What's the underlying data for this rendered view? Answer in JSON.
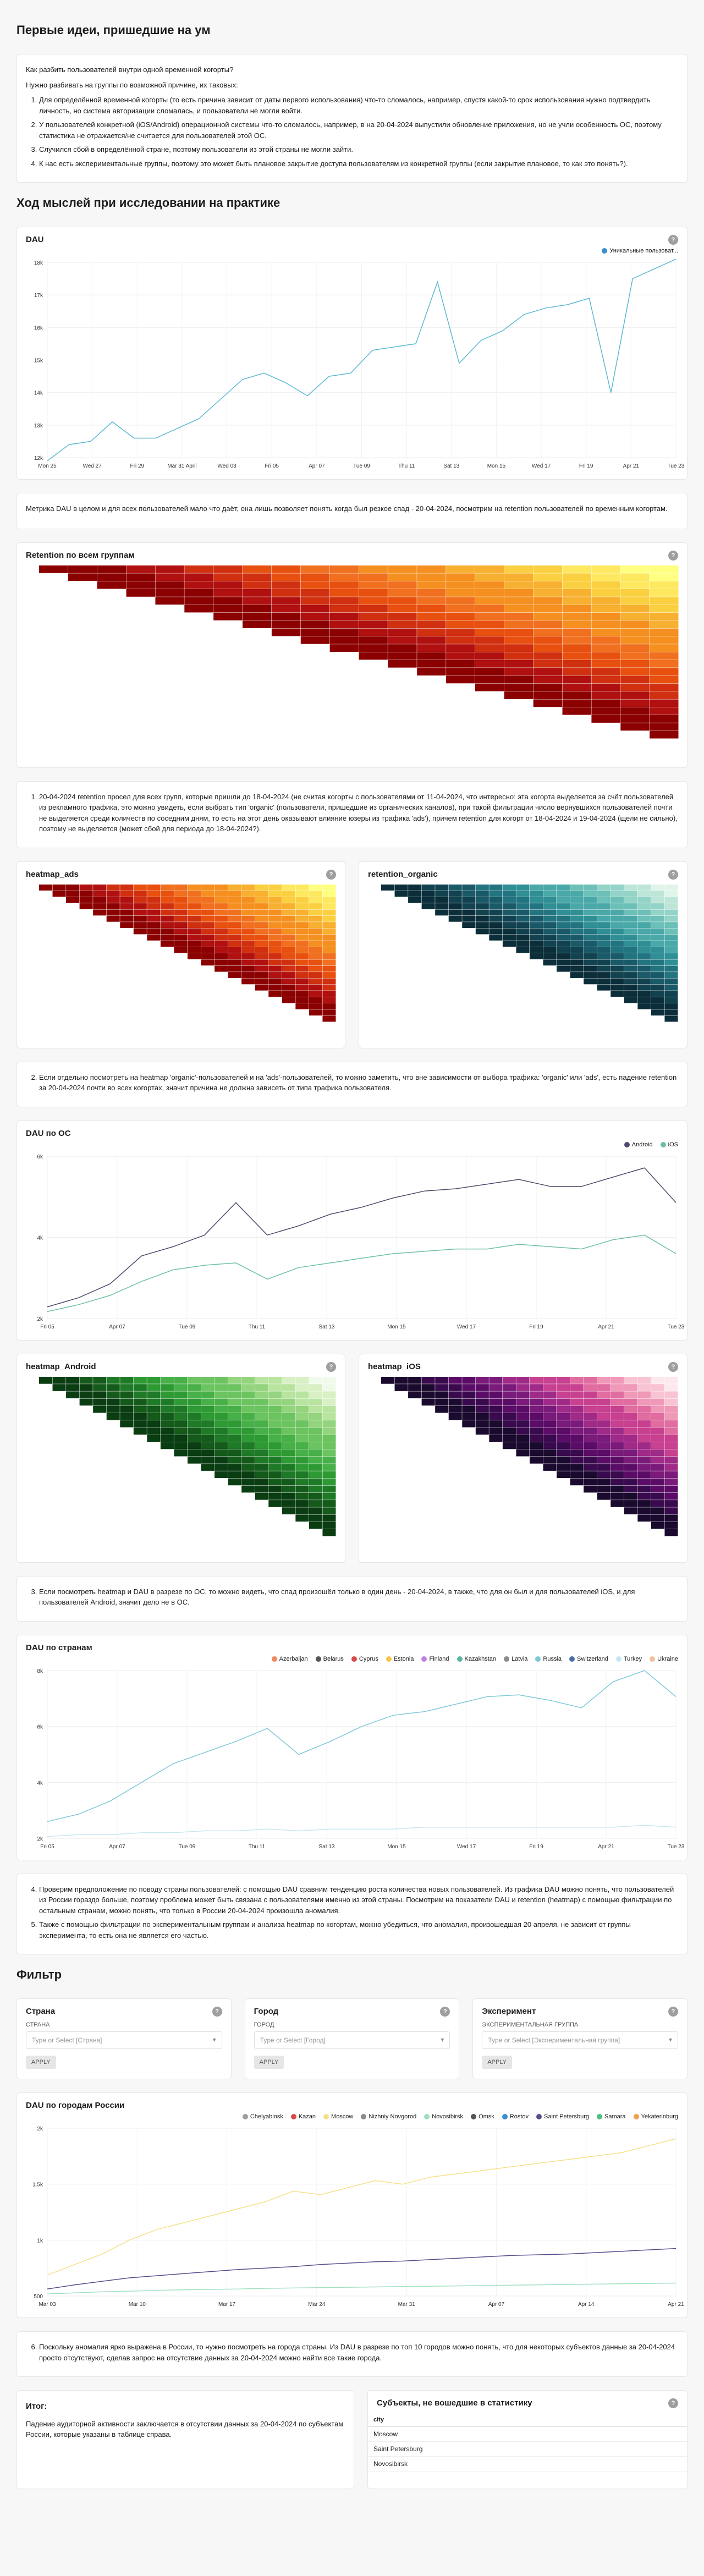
{
  "sections": {
    "first_ideas": "Первые идеи, пришедшие на ум",
    "practice": "Ход мыслей при исследовании на практике",
    "filter": "Фильтр"
  },
  "intro": {
    "q1": "Как разбить пользователей внутри одной временной когорты?",
    "q2": "Нужно разбивать на группы по возможной причине, их таковых:",
    "items": [
      "Для определённой временной когорты (то есть причина зависит от даты первого использования) что-то сломалось, например, спустя какой-то срок использования нужно подтвердить личность, но система авторизации сломалась, и пользователи не могли войти.",
      "У пользователей конкретной (iOS/Android) операционной системы что-то сломалось, например, в на 20-04-2024 выпустили обновление приложения, но не учли особенность ОС, поэтому статистика не отражается/не считается для пользователей этой ОС.",
      "Случился сбой в определённой стране, поэтому пользователи из этой страны не могли зайти.",
      "К нас есть экспериментальные группы, поэтому это может быть плановое закрытие доступа пользователям из конкретной группы (если закрытие плановое, то как это понять?)."
    ]
  },
  "dau": {
    "title": "DAU",
    "legend": "Уникальные пользоват...",
    "color": "#5bb8d4"
  },
  "note1": "Метрика DAU в целом и для всех пользователей мало что даёт, она лишь позволяет понять когда был резкое спад - 20-04-2024, посмотрим на retention пользователей по временным когортам.",
  "retention_all": {
    "title": "Retention по всем группам"
  },
  "note2": "20-04-2024 retention просел для всех групп, которые пришли до 18-04-2024 (не считая когорты с пользователями от 11-04-2024, что интересно: эта когорта выделяется за счёт пользователей из рекламного трафика, это можно увидеть, если выбрать тип 'organic' (пользователи, пришедшие из органических каналов), при такой фильтрации число вернувшихся пользователей почти не выделяется среди количеств по соседним дням, то есть на этот день оказывают влияние юзеры из трафика 'ads'), причем retention для когорт от 18-04-2024 и 19-04-2024 (щели не сильно), поэтому не выделяется (может сбой для периода до 18-04-2024?).",
  "heatmap_ads": {
    "title": "heatmap_ads"
  },
  "retention_organic": {
    "title": "retention_organic"
  },
  "note3": "Если отдельно посмотреть на heatmap 'organic'-пользователей и на 'ads'-пользователей, то можно заметить, что вне зависимости от выбора трафика: 'organic' или 'ads', есть падение retention за 20-04-2024 почти во всех когортах, значит причина не должна зависеть от типа трафика пользователя.",
  "dau_os": {
    "title": "DAU по ОС",
    "android": "Android",
    "ios": "iOS"
  },
  "heatmap_android": {
    "title": "heatmap_Android"
  },
  "heatmap_ios": {
    "title": "heatmap_iOS"
  },
  "note4": "Если посмотреть heatmap и DAU в разрезе по ОС, то можно видеть, что спад произошёл только в один день - 20-04-2024, в также, что для он был и для пользователей iOS, и для пользователей Android, значит дело не в ОС.",
  "dau_countries": {
    "title": "DAU по странам",
    "legend": [
      "Azerbaijan",
      "Belarus",
      "Cyprus",
      "Estonia",
      "Finland",
      "Kazakhstan",
      "Latvia",
      "Russia",
      "Switzerland",
      "Turkey",
      "Ukraine"
    ],
    "colors": [
      "#f08a5d",
      "#555555",
      "#d94a4a",
      "#f5c542",
      "#c080e0",
      "#5bb8a0",
      "#8c8c8c",
      "#7ec8d8",
      "#4b6ea8",
      "#c8e6f0",
      "#f0c0a0"
    ]
  },
  "note5": [
    "Проверим предположение по поводу страны пользователей: с помощью DAU сравним тенденцию роста количества новых пользователей. Из графика DAU можно понять, что пользователей из России гораздо больше, поэтому проблема может быть связана с пользователями именно из этой страны. Посмотрим на показатели DAU и retention (heatmap) с помощью фильтрации по остальным странам, можно понять, что только в России 20-04-2024 произошла аномалия.",
    "Также с помощью фильтрации по экспериментальным группам и анализа heatmap по когортам, можно убедиться, что аномалия, произошедшая 20 апреля, не зависит от группы эксперимента, то есть она не является его частью."
  ],
  "filters": [
    {
      "title": "Страна",
      "label": "СТРАНА",
      "placeholder": "Type or Select [Страна]",
      "apply": "APPLY"
    },
    {
      "title": "Город",
      "label": "ГОРОД",
      "placeholder": "Type or Select [Город]",
      "apply": "APPLY"
    },
    {
      "title": "Эксперимент",
      "label": "ЭКСПЕРИМЕНТАЛЬНАЯ ГРУППА",
      "placeholder": "Type or Select [Экспериментальная группа]",
      "apply": "APPLY"
    }
  ],
  "dau_cities": {
    "title": "DAU по городам России",
    "legend": [
      "Chelyabinsk",
      "Kazan",
      "Moscow",
      "Nizhniy Novgorod",
      "Novosibirsk",
      "Omsk",
      "Rostov",
      "Saint Petersburg",
      "Samara",
      "Yekaterinburg"
    ],
    "colors": [
      "#9e9e9e",
      "#d94a4a",
      "#f5e08a",
      "#8c8c8c",
      "#a0e0c0",
      "#555555",
      "#3a8fd0",
      "#5b4a8c",
      "#4cc080",
      "#f0a050"
    ]
  },
  "note6": "Поскольку аномалия ярко выражена в России, то нужно посмотреть на города страны. Из DAU в разрезе по топ 10 городов можно понять, что для некоторых субъектов данные за 20-04-2024 просто отсутствуют, сделав запрос на отсутствие данных за 20-04-2024 можно найти все такие города.",
  "summary": {
    "title": "Итог:",
    "text": "Падение аудиторной активности заключается в отсутствии данных за 20-04-2024 по субъектам России, которые указаны в таблице справа."
  },
  "missing": {
    "title": "Субъекты, не вошедшие в статистику",
    "col": "city",
    "rows": [
      "Moscow",
      "Saint Petersburg",
      "Novosibirsk"
    ]
  },
  "axis": {
    "dau_x": [
      "Mon 25",
      "Wed 27",
      "Fri 29",
      "Mar 31 April",
      "Wed 03",
      "Fri 05",
      "Apr 07",
      "Tue 09",
      "Thu 11",
      "Sat 13",
      "Mon 15",
      "Wed 17",
      "Fri 19",
      "Apr 21",
      "Tue 23"
    ],
    "dau_y": [
      "18k",
      "17k",
      "16k",
      "15k",
      "14k",
      "13k",
      "12k"
    ],
    "os_x": [
      "Fri 05",
      "Apr 07",
      "Tue 09",
      "Thu 11",
      "Sat 13",
      "Mon 15",
      "Wed 17",
      "Fri 19",
      "Apr 21",
      "Tue 23"
    ],
    "os_y": [
      "6k",
      "4k",
      "2k"
    ],
    "cty_x": [
      "Fri 05",
      "Apr 07",
      "Tue 09",
      "Thu 11",
      "Sat 13",
      "Mon 15",
      "Wed 17",
      "Fri 19",
      "Apr 21",
      "Tue 23"
    ],
    "cty_y": [
      "8k",
      "6k",
      "4k",
      "2k"
    ],
    "city_x": [
      "Mar 03",
      "Mar 10",
      "Mar 17",
      "Mar 24",
      "Mar 31",
      "Apr 07",
      "Apr 14",
      "Apr 21"
    ],
    "city_y": [
      "2k",
      "1.5k",
      "1k",
      "500"
    ]
  },
  "chart_data": [
    {
      "type": "line",
      "title": "DAU",
      "x": [
        "Mar 25",
        "Mar 26",
        "Mar 27",
        "Mar 28",
        "Mar 29",
        "Mar 30",
        "Mar 31",
        "Apr 01",
        "Apr 02",
        "Apr 03",
        "Apr 04",
        "Apr 05",
        "Apr 06",
        "Apr 07",
        "Apr 08",
        "Apr 09",
        "Apr 10",
        "Apr 11",
        "Apr 12",
        "Apr 13",
        "Apr 14",
        "Apr 15",
        "Apr 16",
        "Apr 17",
        "Apr 18",
        "Apr 19",
        "Apr 20",
        "Apr 21",
        "Apr 22",
        "Apr 23"
      ],
      "series": [
        {
          "name": "Уникальные пользоват...",
          "values": [
            11.9,
            12.4,
            12.5,
            13.1,
            12.6,
            12.6,
            12.9,
            13.2,
            13.8,
            14.4,
            14.6,
            14.3,
            13.9,
            14.5,
            14.6,
            15.3,
            15.4,
            15.5,
            17.4,
            14.9,
            15.6,
            15.9,
            16.4,
            16.6,
            16.7,
            16.9,
            14.0,
            17.5,
            17.8,
            18.1
          ]
        }
      ],
      "ylim": [
        12,
        18
      ]
    },
    {
      "type": "line",
      "title": "DAU по ОС",
      "series": [
        {
          "name": "Android",
          "values": [
            0.5,
            0.9,
            1.5,
            2.7,
            3.1,
            3.6,
            5.0,
            3.6,
            4.0,
            4.5,
            4.8,
            5.2,
            5.5,
            5.6,
            5.8,
            6.0,
            5.7,
            5.7,
            6.1,
            6.5,
            5.0
          ]
        },
        {
          "name": "iOS",
          "values": [
            0.3,
            0.6,
            1.0,
            1.6,
            2.1,
            2.3,
            2.4,
            1.7,
            2.2,
            2.4,
            2.6,
            2.8,
            2.9,
            3.0,
            3.0,
            3.2,
            3.1,
            3.0,
            3.4,
            3.6,
            2.8
          ]
        }
      ],
      "ylim": [
        0,
        7
      ]
    },
    {
      "type": "line",
      "title": "DAU по странам",
      "series": [
        {
          "name": "Russia",
          "values": [
            0.9,
            1.3,
            2.0,
            3.0,
            4.0,
            4.6,
            5.2,
            5.9,
            4.5,
            5.2,
            6.0,
            6.6,
            6.8,
            7.2,
            7.6,
            7.7,
            7.4,
            7.0,
            8.4,
            9.0,
            7.6
          ]
        },
        {
          "name": "Turkey",
          "values": [
            0.1,
            0.2,
            0.2,
            0.3,
            0.3,
            0.4,
            0.4,
            0.5,
            0.4,
            0.5,
            0.5,
            0.5,
            0.6,
            0.6,
            0.6,
            0.6,
            0.6,
            0.6,
            0.6,
            0.7,
            0.6
          ]
        }
      ],
      "ylim": [
        0,
        9
      ]
    },
    {
      "type": "line",
      "title": "DAU по городам России",
      "series": [
        {
          "name": "Moscow",
          "values": [
            300,
            450,
            600,
            800,
            950,
            1050,
            1150,
            1250,
            1350,
            1500,
            1450,
            1550,
            1650,
            1600,
            1700,
            1750,
            1800,
            1850,
            1900,
            1950,
            2000,
            2050,
            2150,
            2250
          ]
        },
        {
          "name": "Saint Petersburg",
          "values": [
            100,
            160,
            210,
            260,
            290,
            320,
            350,
            380,
            400,
            420,
            450,
            470,
            490,
            500,
            520,
            540,
            560,
            580,
            590,
            600,
            620,
            640,
            660,
            680
          ]
        },
        {
          "name": "Novosibirsk",
          "values": [
            30,
            45,
            60,
            70,
            80,
            90,
            95,
            100,
            110,
            115,
            120,
            125,
            130,
            135,
            140,
            145,
            150,
            155,
            160,
            165,
            170,
            175,
            180,
            185
          ]
        }
      ],
      "ylim": [
        0,
        2400
      ]
    }
  ]
}
